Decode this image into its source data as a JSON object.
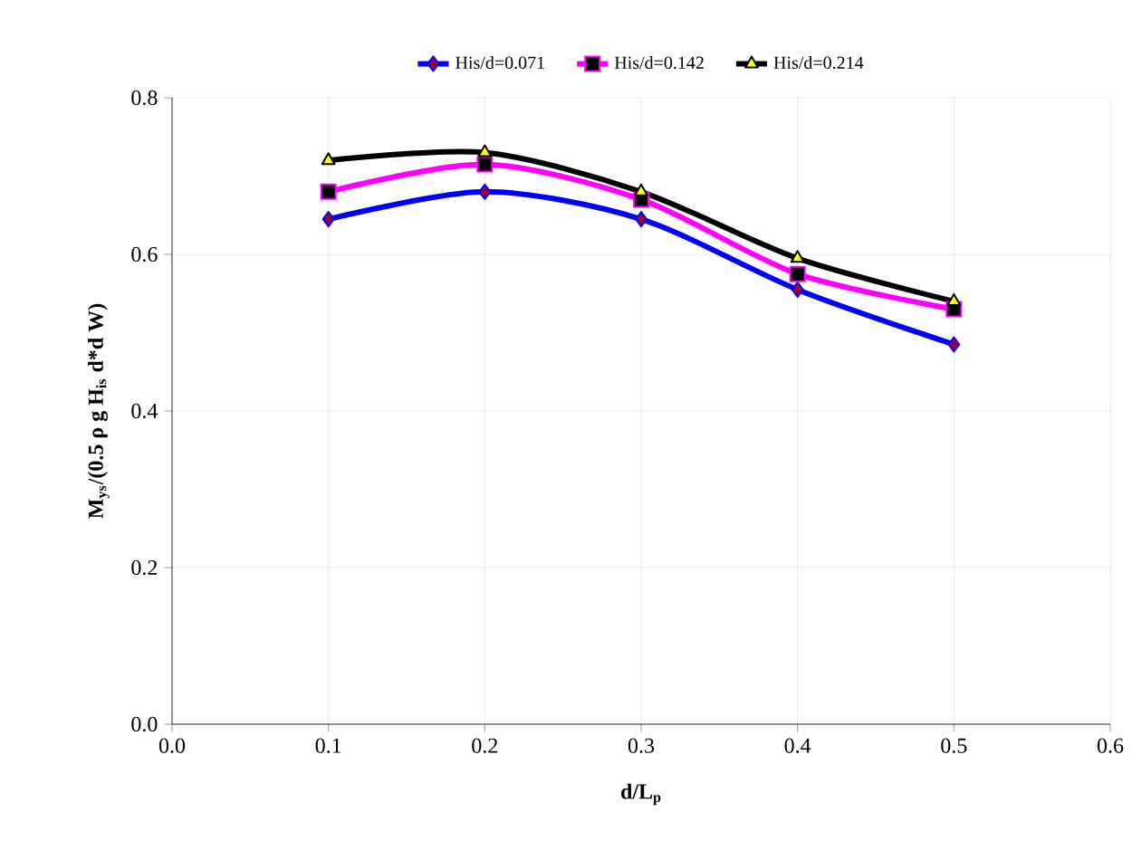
{
  "chart_data": {
    "type": "line",
    "xlabel": "d/L$_{p}$",
    "ylabel": "M$_{ys}$/(0.5 ρ g H$_{is}$ d*d W)",
    "x": [
      0.1,
      0.2,
      0.3,
      0.4,
      0.5
    ],
    "series": [
      {
        "name": "His/d=0.071",
        "color": "#0000ff",
        "marker": "diamond",
        "values": [
          0.645,
          0.68,
          0.645,
          0.555,
          0.485
        ]
      },
      {
        "name": "His/d=0.142",
        "color": "#ff00ff",
        "marker": "square",
        "values": [
          0.68,
          0.715,
          0.67,
          0.575,
          0.53
        ]
      },
      {
        "name": "His/d=0.214",
        "color": "#000000",
        "marker": "triangle",
        "values": [
          0.72,
          0.73,
          0.68,
          0.595,
          0.54
        ]
      }
    ],
    "xlim": [
      0,
      0.6
    ],
    "xticks": [
      {
        "value": 0,
        "label": "0.0"
      },
      0.1,
      0.2,
      0.3,
      0.4,
      0.5,
      0.6
    ],
    "ylim": [
      0,
      0.8
    ],
    "yticks": [
      {
        "value": 0,
        "label": "0.0"
      },
      0.2,
      0.4,
      0.6,
      0.8
    ],
    "grid": true,
    "legend": "top"
  }
}
